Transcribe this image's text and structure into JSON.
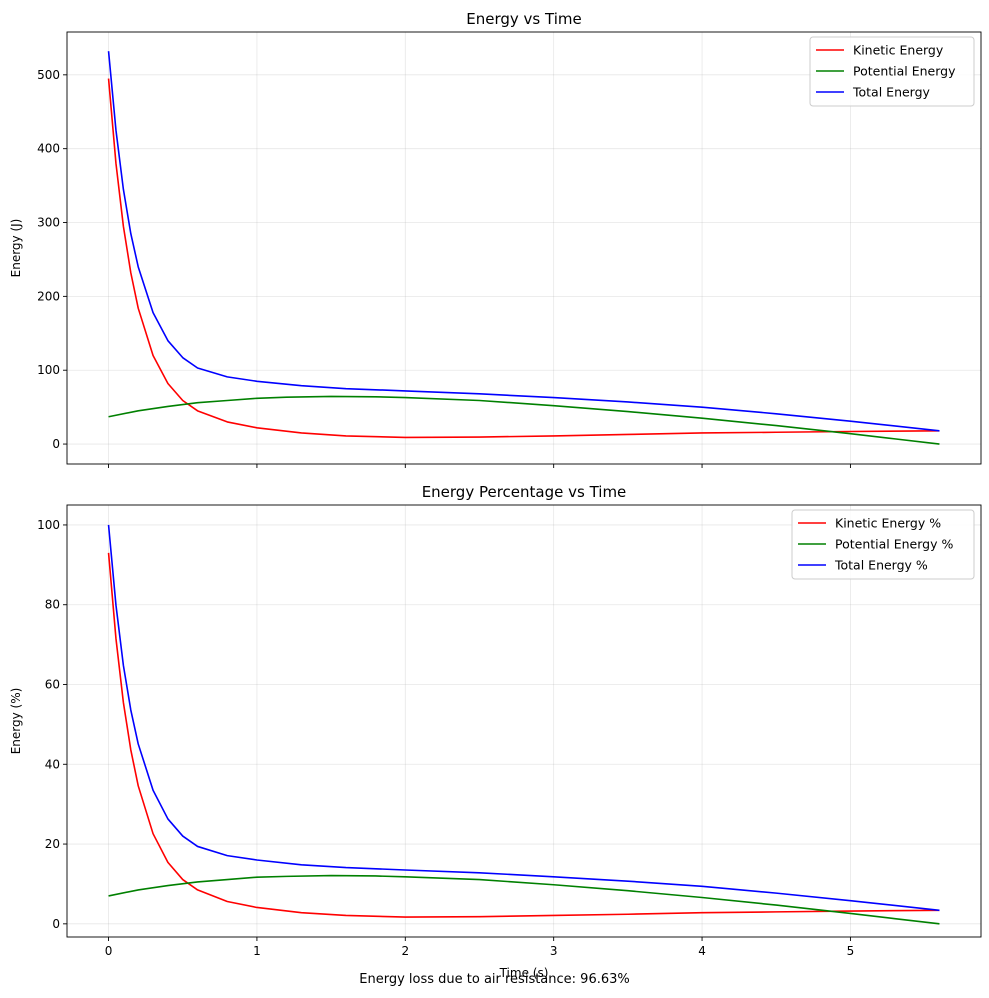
{
  "footnote": "Energy loss due to air resistance: 96.63%",
  "chart_data": [
    {
      "type": "line",
      "title": "Energy vs Time",
      "xlabel": "",
      "ylabel": "Energy (J)",
      "xlim": [
        -0.28,
        5.88
      ],
      "ylim": [
        -27,
        558
      ],
      "xticks": [
        0,
        1,
        2,
        3,
        4,
        5
      ],
      "xtick_labels": [
        "",
        "",
        "",
        "",
        "",
        ""
      ],
      "yticks": [
        0,
        100,
        200,
        300,
        400,
        500
      ],
      "grid": true,
      "legend_position": "top-right",
      "series": [
        {
          "name": "Kinetic Energy",
          "color": "#ff0000",
          "x": [
            0,
            0.05,
            0.1,
            0.15,
            0.2,
            0.3,
            0.4,
            0.5,
            0.6,
            0.8,
            1.0,
            1.3,
            1.6,
            2.0,
            2.5,
            3.0,
            3.5,
            4.0,
            4.5,
            5.0,
            5.6
          ],
          "y": [
            495,
            380,
            295,
            232,
            184,
            120,
            82,
            59,
            45,
            30,
            22,
            15,
            11,
            9,
            9.5,
            11,
            13,
            15,
            16,
            17,
            18
          ]
        },
        {
          "name": "Potential Energy",
          "color": "#008000",
          "x": [
            0,
            0.2,
            0.4,
            0.6,
            0.8,
            1.0,
            1.2,
            1.5,
            1.8,
            2.0,
            2.5,
            3.0,
            3.5,
            4.0,
            4.5,
            5.0,
            5.3,
            5.6
          ],
          "y": [
            37,
            45,
            51,
            56,
            59,
            62,
            63.5,
            64.5,
            64,
            63,
            59,
            52,
            44,
            35,
            25,
            14,
            7,
            0
          ]
        },
        {
          "name": "Total Energy",
          "color": "#0000ff",
          "x": [
            0,
            0.05,
            0.1,
            0.15,
            0.2,
            0.3,
            0.4,
            0.5,
            0.6,
            0.8,
            1.0,
            1.3,
            1.6,
            2.0,
            2.5,
            3.0,
            3.5,
            4.0,
            4.5,
            5.0,
            5.6
          ],
          "y": [
            532,
            425,
            345,
            285,
            240,
            178,
            140,
            117,
            103,
            91,
            85,
            79,
            75,
            72,
            68,
            63,
            57,
            50,
            41,
            31,
            18
          ]
        }
      ]
    },
    {
      "type": "line",
      "title": "Energy Percentage vs Time",
      "xlabel": "Time (s)",
      "ylabel": "Energy (%)",
      "xlim": [
        -0.28,
        5.88
      ],
      "ylim": [
        -3.3,
        105
      ],
      "xticks": [
        0,
        1,
        2,
        3,
        4,
        5
      ],
      "xtick_labels": [
        "0",
        "1",
        "2",
        "3",
        "4",
        "5"
      ],
      "yticks": [
        0,
        20,
        40,
        60,
        80,
        100
      ],
      "grid": true,
      "legend_position": "top-right",
      "series": [
        {
          "name": "Kinetic Energy %",
          "color": "#ff0000",
          "x": [
            0,
            0.05,
            0.1,
            0.15,
            0.2,
            0.3,
            0.4,
            0.5,
            0.6,
            0.8,
            1.0,
            1.3,
            1.6,
            2.0,
            2.5,
            3.0,
            3.5,
            4.0,
            4.5,
            5.0,
            5.6
          ],
          "y": [
            93,
            71.5,
            55.5,
            43.6,
            34.6,
            22.6,
            15.4,
            11.1,
            8.5,
            5.6,
            4.1,
            2.8,
            2.1,
            1.7,
            1.8,
            2.1,
            2.4,
            2.8,
            3.0,
            3.2,
            3.4
          ]
        },
        {
          "name": "Potential Energy %",
          "color": "#008000",
          "x": [
            0,
            0.2,
            0.4,
            0.6,
            0.8,
            1.0,
            1.2,
            1.5,
            1.8,
            2.0,
            2.5,
            3.0,
            3.5,
            4.0,
            4.5,
            5.0,
            5.3,
            5.6
          ],
          "y": [
            7,
            8.5,
            9.6,
            10.5,
            11.1,
            11.7,
            11.9,
            12.1,
            12.0,
            11.8,
            11.1,
            9.8,
            8.3,
            6.6,
            4.7,
            2.6,
            1.3,
            0
          ]
        },
        {
          "name": "Total Energy %",
          "color": "#0000ff",
          "x": [
            0,
            0.05,
            0.1,
            0.15,
            0.2,
            0.3,
            0.4,
            0.5,
            0.6,
            0.8,
            1.0,
            1.3,
            1.6,
            2.0,
            2.5,
            3.0,
            3.5,
            4.0,
            4.5,
            5.0,
            5.6
          ],
          "y": [
            100,
            79.9,
            64.8,
            53.6,
            45.1,
            33.5,
            26.3,
            22.0,
            19.4,
            17.1,
            16.0,
            14.8,
            14.1,
            13.5,
            12.8,
            11.8,
            10.7,
            9.4,
            7.7,
            5.8,
            3.4
          ]
        }
      ]
    }
  ]
}
